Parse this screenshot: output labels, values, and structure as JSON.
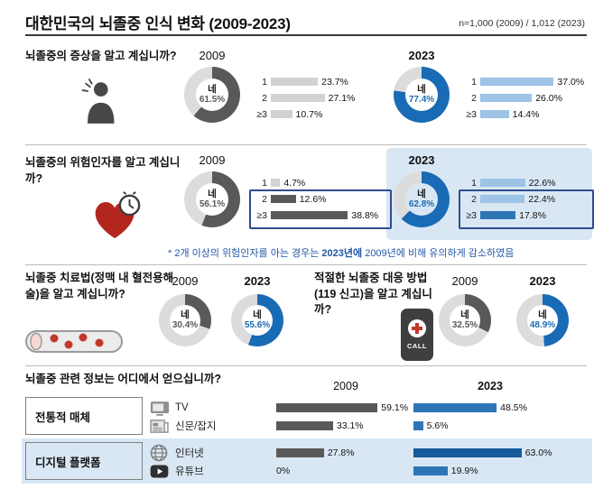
{
  "header": {
    "title": "대한민국의 뇌졸중 인식 변화 (2009-2023)",
    "sample": "n=1,000 (2009) / 1,012 (2023)"
  },
  "palette": {
    "gray": "#595959",
    "lightGray": "#d2d2d2",
    "blue": "#1a6bb5",
    "midBlue": "#2e75b6",
    "lightBlue": "#9dc3e6",
    "darkBlue": "#155a99",
    "track": "#dcdcdc",
    "highlight": "#d9e7f4",
    "noteBlue": "#2457a7",
    "boxOutline": "#2f4d8f"
  },
  "icons": {
    "symptoms": "headache-person-icon",
    "risk": "heart-clock-icon",
    "treatment": "blood-vessel-icon",
    "response": "emergency-call-phone-icon",
    "tv": "tv-icon",
    "newspaper": "newspaper-icon",
    "internet": "globe-icon",
    "youtube": "youtube-play-icon"
  },
  "misc": {
    "call_label": "CALL"
  },
  "chart_data": [
    {
      "id": "symptom_awareness",
      "type": "donut+bars",
      "question": "뇌졸중의 증상을 알고 계십니까?",
      "unit": "%",
      "years": [
        {
          "year": "2009",
          "yes_label": "네",
          "yes_pct": "61.5",
          "bars": [
            {
              "label": "1",
              "pct": "23.7"
            },
            {
              "label": "2",
              "pct": "27.1"
            },
            {
              "label": "≥3",
              "pct": "10.7"
            }
          ]
        },
        {
          "year": "2023",
          "yes_label": "네",
          "yes_pct": "77.4",
          "bars": [
            {
              "label": "1",
              "pct": "37.0"
            },
            {
              "label": "2",
              "pct": "26.0"
            },
            {
              "label": "≥3",
              "pct": "14.4"
            }
          ]
        }
      ]
    },
    {
      "id": "risk_factor_awareness",
      "type": "donut+bars",
      "question": "뇌졸중의 위험인자를 알고 계십니까?",
      "unit": "%",
      "years": [
        {
          "year": "2009",
          "yes_label": "네",
          "yes_pct": "56.1",
          "bars": [
            {
              "label": "1",
              "pct": "4.7"
            },
            {
              "label": "2",
              "pct": "12.6"
            },
            {
              "label": "≥3",
              "pct": "38.8"
            }
          ]
        },
        {
          "year": "2023",
          "yes_label": "네",
          "yes_pct": "62.8",
          "highlighted": true,
          "bars": [
            {
              "label": "1",
              "pct": "22.6"
            },
            {
              "label": "2",
              "pct": "22.4"
            },
            {
              "label": "≥3",
              "pct": "17.8"
            }
          ]
        }
      ],
      "note": {
        "prefix": "* 2개 이상의 위험인자를 아는 경우는 ",
        "em": "2023년에",
        "suffix": " 2009년에 비해 유의하게 감소하였음"
      }
    },
    {
      "id": "treatment_awareness",
      "type": "donut",
      "question": "뇌졸중 치료법(정맥 내 혈전용해술)을 알고 계십니까?",
      "unit": "%",
      "years": [
        {
          "year": "2009",
          "yes_label": "네",
          "yes_pct": "30.4"
        },
        {
          "year": "2023",
          "yes_label": "네",
          "yes_pct": "55.6"
        }
      ]
    },
    {
      "id": "response_awareness",
      "type": "donut",
      "question": "적절한 뇌졸중 대응 방법(119 신고)을 알고 계십니까?",
      "unit": "%",
      "years": [
        {
          "year": "2009",
          "yes_label": "네",
          "yes_pct": "32.5"
        },
        {
          "year": "2023",
          "yes_label": "네",
          "yes_pct": "48.9"
        }
      ]
    },
    {
      "id": "info_sources",
      "type": "grouped-bar",
      "question": "뇌졸중 관련 정보는 어디에서 얻으십니까?",
      "unit": "%",
      "col_headers": [
        "2009",
        "2023"
      ],
      "groups": [
        {
          "label": "전통적 매체",
          "rows": [
            {
              "label": "TV",
              "icon": "tv-icon",
              "pct_2009": "59.1",
              "pct_2023": "48.5"
            },
            {
              "label": "신문/잡지",
              "icon": "newspaper-icon",
              "pct_2009": "33.1",
              "pct_2023": "5.6"
            }
          ]
        },
        {
          "label": "디지털 플랫폼",
          "highlighted": true,
          "rows": [
            {
              "label": "인터넷",
              "icon": "globe-icon",
              "pct_2009": "27.8",
              "pct_2023": "63.0"
            },
            {
              "label": "유튜브",
              "icon": "youtube-play-icon",
              "pct_2009": "0",
              "pct_2023": "19.9"
            }
          ]
        }
      ]
    }
  ]
}
